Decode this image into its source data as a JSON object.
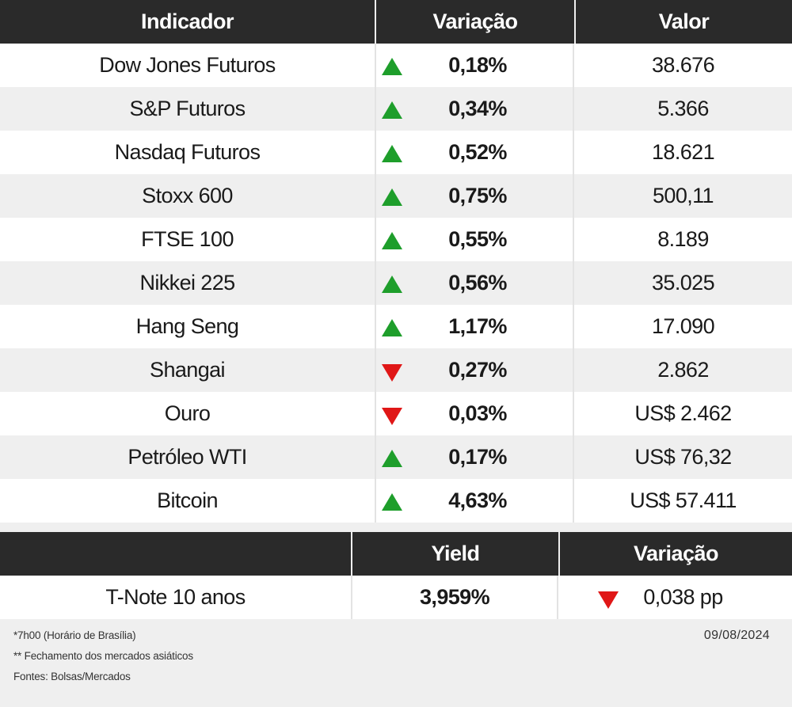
{
  "main_table": {
    "headers": [
      "Indicador",
      "Variação",
      "Valor"
    ],
    "rows": [
      {
        "indicador": "Dow Jones Futuros",
        "direction": "up",
        "variacao": "0,18%",
        "valor": "38.676"
      },
      {
        "indicador": "S&P Futuros",
        "direction": "up",
        "variacao": "0,34%",
        "valor": "5.366"
      },
      {
        "indicador": "Nasdaq Futuros",
        "direction": "up",
        "variacao": "0,52%",
        "valor": "18.621"
      },
      {
        "indicador": "Stoxx 600",
        "direction": "up",
        "variacao": "0,75%",
        "valor": "500,11"
      },
      {
        "indicador": "FTSE 100",
        "direction": "up",
        "variacao": "0,55%",
        "valor": "8.189"
      },
      {
        "indicador": "Nikkei 225",
        "direction": "up",
        "variacao": "0,56%",
        "valor": "35.025"
      },
      {
        "indicador": "Hang Seng",
        "direction": "up",
        "variacao": "1,17%",
        "valor": "17.090"
      },
      {
        "indicador": "Shangai",
        "direction": "down",
        "variacao": "0,27%",
        "valor": "2.862"
      },
      {
        "indicador": "Ouro",
        "direction": "down",
        "variacao": "0,03%",
        "valor": "US$ 2.462"
      },
      {
        "indicador": "Petróleo WTI",
        "direction": "up",
        "variacao": "0,17%",
        "valor": "US$ 76,32"
      },
      {
        "indicador": "Bitcoin",
        "direction": "up",
        "variacao": "4,63%",
        "valor": "US$ 57.411"
      }
    ]
  },
  "bond_table": {
    "headers": [
      "",
      "Yield",
      "Variação"
    ],
    "row": {
      "name": "T-Note 10 anos",
      "yield": "3,959%",
      "direction": "down",
      "variacao": "0,038 pp"
    }
  },
  "notes": [
    "*7h00 (Horário de Brasília)",
    "** Fechamento dos mercados asiáticos",
    "Fontes: Bolsas/Mercados"
  ],
  "date": "09/08/2024",
  "colors": {
    "up": "#1e9e2b",
    "down": "#e01717",
    "header_bg": "#2a2a2a"
  },
  "icons": {
    "up": "triangle-up-icon",
    "down": "triangle-down-icon"
  }
}
